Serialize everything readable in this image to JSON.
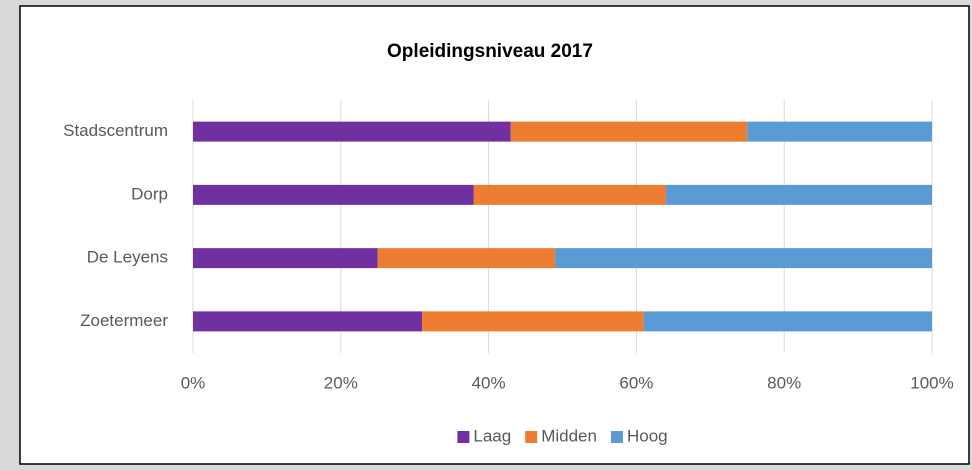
{
  "chart_data": {
    "type": "bar",
    "horizontal": true,
    "stacked": true,
    "title": "Opleidingsniveau 2017",
    "categories": [
      "Stadscentrum",
      "Dorp",
      "De Leyens",
      "Zoetermeer"
    ],
    "series": [
      {
        "name": "Laag",
        "color": "#7030a0",
        "values": [
          43,
          38,
          25,
          31
        ]
      },
      {
        "name": "Midden",
        "color": "#ed7d31",
        "values": [
          32,
          26,
          24,
          30
        ]
      },
      {
        "name": "Hoog",
        "color": "#5b9bd5",
        "values": [
          25,
          36,
          51,
          39
        ]
      }
    ],
    "xlim": [
      0,
      100
    ],
    "xticks": [
      {
        "value": 0,
        "label": "0%"
      },
      {
        "value": 20,
        "label": "20%"
      },
      {
        "value": 40,
        "label": "40%"
      },
      {
        "value": 60,
        "label": "60%"
      },
      {
        "value": 80,
        "label": "80%"
      },
      {
        "value": 100,
        "label": "100%"
      }
    ],
    "grid": true,
    "legend": "bottom"
  }
}
